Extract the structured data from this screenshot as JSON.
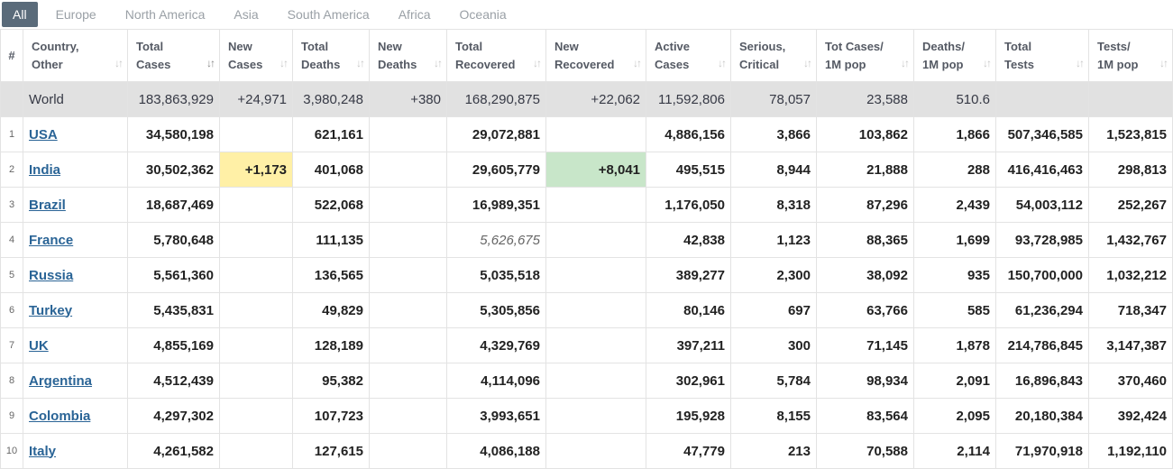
{
  "tabs": [
    "All",
    "Europe",
    "North America",
    "Asia",
    "South America",
    "Africa",
    "Oceania"
  ],
  "columns": [
    {
      "l1": "#",
      "l2": ""
    },
    {
      "l1": "Country,",
      "l2": "Other"
    },
    {
      "l1": "Total",
      "l2": "Cases"
    },
    {
      "l1": "New",
      "l2": "Cases"
    },
    {
      "l1": "Total",
      "l2": "Deaths"
    },
    {
      "l1": "New",
      "l2": "Deaths"
    },
    {
      "l1": "Total",
      "l2": "Recovered"
    },
    {
      "l1": "New",
      "l2": "Recovered"
    },
    {
      "l1": "Active",
      "l2": "Cases"
    },
    {
      "l1": "Serious,",
      "l2": "Critical"
    },
    {
      "l1": "Tot Cases/",
      "l2": "1M pop"
    },
    {
      "l1": "Deaths/",
      "l2": "1M pop"
    },
    {
      "l1": "Total",
      "l2": "Tests"
    },
    {
      "l1": "Tests/",
      "l2": "1M pop"
    }
  ],
  "world": {
    "country": "World",
    "total_cases": "183,863,929",
    "new_cases": "+24,971",
    "total_deaths": "3,980,248",
    "new_deaths": "+380",
    "total_recovered": "168,290,875",
    "new_recovered": "+22,062",
    "active": "11,592,806",
    "serious": "78,057",
    "cases_per_m": "23,588",
    "deaths_per_m": "510.6",
    "total_tests": "",
    "tests_per_m": ""
  },
  "rows": [
    {
      "idx": "1",
      "country": "USA",
      "total_cases": "34,580,198",
      "new_cases": "",
      "total_deaths": "621,161",
      "new_deaths": "",
      "total_recovered": "29,072,881",
      "new_recovered": "",
      "active": "4,886,156",
      "serious": "3,866",
      "cases_per_m": "103,862",
      "deaths_per_m": "1,866",
      "total_tests": "507,346,585",
      "tests_per_m": "1,523,815"
    },
    {
      "idx": "2",
      "country": "India",
      "total_cases": "30,502,362",
      "new_cases": "+1,173",
      "total_deaths": "401,068",
      "new_deaths": "",
      "total_recovered": "29,605,779",
      "new_recovered": "+8,041",
      "active": "495,515",
      "serious": "8,944",
      "cases_per_m": "21,888",
      "deaths_per_m": "288",
      "total_tests": "416,416,463",
      "tests_per_m": "298,813"
    },
    {
      "idx": "3",
      "country": "Brazil",
      "total_cases": "18,687,469",
      "new_cases": "",
      "total_deaths": "522,068",
      "new_deaths": "",
      "total_recovered": "16,989,351",
      "new_recovered": "",
      "active": "1,176,050",
      "serious": "8,318",
      "cases_per_m": "87,296",
      "deaths_per_m": "2,439",
      "total_tests": "54,003,112",
      "tests_per_m": "252,267"
    },
    {
      "idx": "4",
      "country": "France",
      "total_cases": "5,780,648",
      "new_cases": "",
      "total_deaths": "111,135",
      "new_deaths": "",
      "total_recovered": "5,626,675",
      "new_recovered": "",
      "active": "42,838",
      "serious": "1,123",
      "cases_per_m": "88,365",
      "deaths_per_m": "1,699",
      "total_tests": "93,728,985",
      "tests_per_m": "1,432,767"
    },
    {
      "idx": "5",
      "country": "Russia",
      "total_cases": "5,561,360",
      "new_cases": "",
      "total_deaths": "136,565",
      "new_deaths": "",
      "total_recovered": "5,035,518",
      "new_recovered": "",
      "active": "389,277",
      "serious": "2,300",
      "cases_per_m": "38,092",
      "deaths_per_m": "935",
      "total_tests": "150,700,000",
      "tests_per_m": "1,032,212"
    },
    {
      "idx": "6",
      "country": "Turkey",
      "total_cases": "5,435,831",
      "new_cases": "",
      "total_deaths": "49,829",
      "new_deaths": "",
      "total_recovered": "5,305,856",
      "new_recovered": "",
      "active": "80,146",
      "serious": "697",
      "cases_per_m": "63,766",
      "deaths_per_m": "585",
      "total_tests": "61,236,294",
      "tests_per_m": "718,347"
    },
    {
      "idx": "7",
      "country": "UK",
      "total_cases": "4,855,169",
      "new_cases": "",
      "total_deaths": "128,189",
      "new_deaths": "",
      "total_recovered": "4,329,769",
      "new_recovered": "",
      "active": "397,211",
      "serious": "300",
      "cases_per_m": "71,145",
      "deaths_per_m": "1,878",
      "total_tests": "214,786,845",
      "tests_per_m": "3,147,387"
    },
    {
      "idx": "8",
      "country": "Argentina",
      "total_cases": "4,512,439",
      "new_cases": "",
      "total_deaths": "95,382",
      "new_deaths": "",
      "total_recovered": "4,114,096",
      "new_recovered": "",
      "active": "302,961",
      "serious": "5,784",
      "cases_per_m": "98,934",
      "deaths_per_m": "2,091",
      "total_tests": "16,896,843",
      "tests_per_m": "370,460"
    },
    {
      "idx": "9",
      "country": "Colombia",
      "total_cases": "4,297,302",
      "new_cases": "",
      "total_deaths": "107,723",
      "new_deaths": "",
      "total_recovered": "3,993,651",
      "new_recovered": "",
      "active": "195,928",
      "serious": "8,155",
      "cases_per_m": "83,564",
      "deaths_per_m": "2,095",
      "total_tests": "20,180,384",
      "tests_per_m": "392,424"
    },
    {
      "idx": "10",
      "country": "Italy",
      "total_cases": "4,261,582",
      "new_cases": "",
      "total_deaths": "127,615",
      "new_deaths": "",
      "total_recovered": "4,086,188",
      "new_recovered": "",
      "active": "47,779",
      "serious": "213",
      "cases_per_m": "70,588",
      "deaths_per_m": "2,114",
      "total_tests": "71,970,918",
      "tests_per_m": "1,192,110"
    }
  ],
  "colors": {
    "tab_active_bg": "#5a6b7a",
    "world_row_bg": "#e1e1e1",
    "new_cases_highlight": "#fff0a6",
    "new_recovered_highlight": "#c8e6c9",
    "country_link": "#2a6496"
  },
  "icons": {
    "sort": "sort-arrows-icon",
    "sort_active": "sort-desc-icon"
  }
}
